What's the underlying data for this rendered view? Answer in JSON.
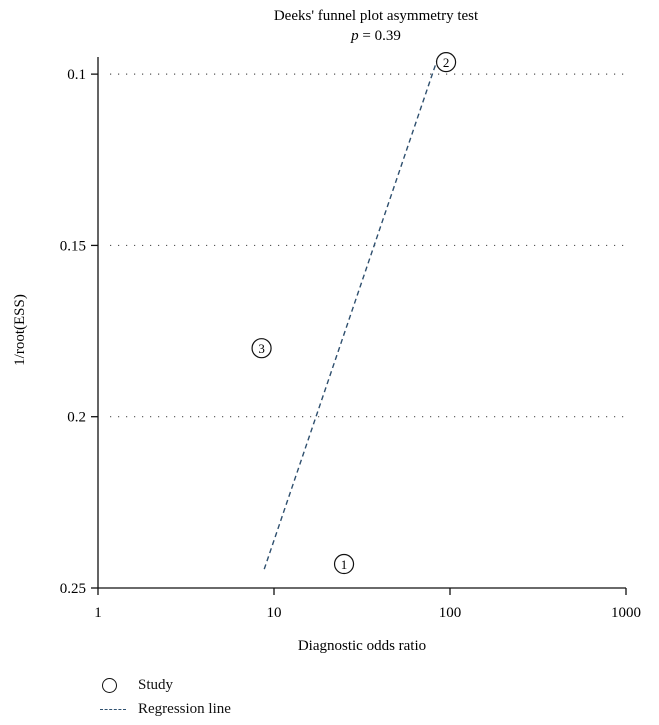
{
  "chart_data": {
    "type": "scatter",
    "title": "Deeks' funnel plot asymmetry test",
    "subtitle_label": "p",
    "subtitle_value": " = 0.39",
    "xlabel": "Diagnostic odds ratio",
    "ylabel": "1/root(ESS)",
    "x_scale": "log",
    "xlim": [
      1,
      1000
    ],
    "ylim": [
      0.25,
      0.095
    ],
    "y_reversed": true,
    "x_ticks": [
      1,
      10,
      100,
      1000
    ],
    "x_tick_labels": [
      "1",
      "10",
      "100",
      "1000"
    ],
    "y_ticks": [
      0.1,
      0.15,
      0.2,
      0.25
    ],
    "y_tick_labels": [
      "0.1",
      "0.15",
      "0.2",
      "0.25"
    ],
    "gridlines_y": [
      0.1,
      0.15,
      0.2
    ],
    "grid": "dotted horizontal",
    "points": [
      {
        "label": "1",
        "x": 25,
        "y": 0.243
      },
      {
        "label": "2",
        "x": 95,
        "y": 0.0965
      },
      {
        "label": "3",
        "x": 8.5,
        "y": 0.18
      }
    ],
    "regression_line": {
      "x": [
        8.8,
        85
      ],
      "y": [
        0.2445,
        0.0955
      ]
    },
    "colors": {
      "axis": "#111111",
      "grid": "#555555",
      "regression": "#2e4f6e"
    }
  },
  "legend": {
    "study": "Study",
    "regression": "Regression line"
  }
}
